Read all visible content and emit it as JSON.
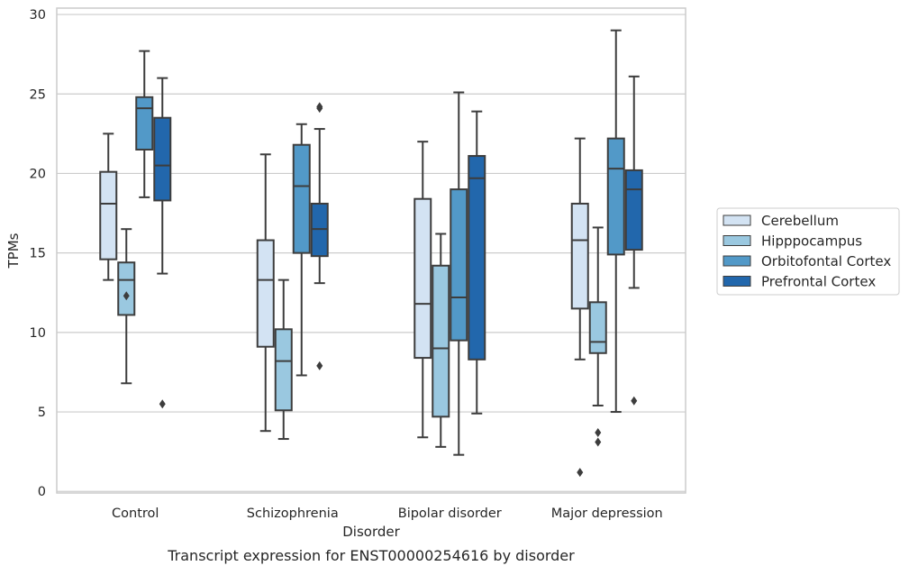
{
  "chart_data": {
    "type": "box",
    "title": "",
    "caption": "Transcript expression for ENST00000254616 by disorder",
    "xlabel": "Disorder",
    "ylabel": "TPMs",
    "ylim": [
      -0.1,
      30.4
    ],
    "yticks": [
      0,
      5,
      10,
      15,
      20,
      25,
      30
    ],
    "grid": "horizontal",
    "legend_position": "right",
    "categories": [
      "Control",
      "Schizophrenia",
      "Bipolar disorder",
      "Major depression"
    ],
    "series": [
      {
        "name": "Cerebellum",
        "color": "#d3e3f3",
        "boxes": [
          {
            "whislo": 13.3,
            "q1": 14.6,
            "med": 18.1,
            "q3": 20.1,
            "whishi": 22.5,
            "fliers": []
          },
          {
            "whislo": 3.8,
            "q1": 9.1,
            "med": 13.3,
            "q3": 15.8,
            "whishi": 21.2,
            "fliers": []
          },
          {
            "whislo": 3.4,
            "q1": 8.4,
            "med": 11.8,
            "q3": 18.4,
            "whishi": 22.0,
            "fliers": []
          },
          {
            "whislo": 8.3,
            "q1": 11.5,
            "med": 15.8,
            "q3": 18.1,
            "whishi": 22.2,
            "fliers": [
              1.2
            ]
          }
        ]
      },
      {
        "name": "Hipppocampus",
        "color": "#9ac8e0",
        "boxes": [
          {
            "whislo": 6.8,
            "q1": 11.1,
            "med": 13.3,
            "q3": 14.4,
            "whishi": 16.5,
            "fliers": [
              12.3
            ]
          },
          {
            "whislo": 3.3,
            "q1": 5.1,
            "med": 8.2,
            "q3": 10.2,
            "whishi": 13.3,
            "fliers": []
          },
          {
            "whislo": 2.8,
            "q1": 4.7,
            "med": 9.0,
            "q3": 14.2,
            "whishi": 16.2,
            "fliers": []
          },
          {
            "whislo": 5.4,
            "q1": 8.7,
            "med": 9.4,
            "q3": 11.9,
            "whishi": 16.6,
            "fliers": [
              3.7,
              3.1
            ]
          }
        ]
      },
      {
        "name": "Orbitofontal Cortex",
        "color": "#5299c8",
        "boxes": [
          {
            "whislo": 18.5,
            "q1": 21.5,
            "med": 24.1,
            "q3": 24.8,
            "whishi": 27.7,
            "fliers": []
          },
          {
            "whislo": 7.3,
            "q1": 15.0,
            "med": 19.2,
            "q3": 21.8,
            "whishi": 23.1,
            "fliers": []
          },
          {
            "whislo": 2.3,
            "q1": 9.5,
            "med": 12.2,
            "q3": 19.0,
            "whishi": 25.1,
            "fliers": []
          },
          {
            "whislo": 5.0,
            "q1": 14.9,
            "med": 20.3,
            "q3": 22.2,
            "whishi": 29.0,
            "fliers": []
          }
        ]
      },
      {
        "name": "Prefrontal Cortex",
        "color": "#2267ac",
        "boxes": [
          {
            "whislo": 13.7,
            "q1": 18.3,
            "med": 20.5,
            "q3": 23.5,
            "whishi": 26.0,
            "fliers": [
              5.5
            ]
          },
          {
            "whislo": 13.1,
            "q1": 14.8,
            "med": 16.5,
            "q3": 18.1,
            "whishi": 22.8,
            "fliers": [
              24.1,
              24.2,
              7.9
            ]
          },
          {
            "whislo": 4.9,
            "q1": 8.3,
            "med": 19.7,
            "q3": 21.1,
            "whishi": 23.9,
            "fliers": []
          },
          {
            "whislo": 12.8,
            "q1": 15.2,
            "med": 19.0,
            "q3": 20.2,
            "whishi": 26.1,
            "fliers": [
              5.7
            ]
          }
        ]
      }
    ]
  }
}
